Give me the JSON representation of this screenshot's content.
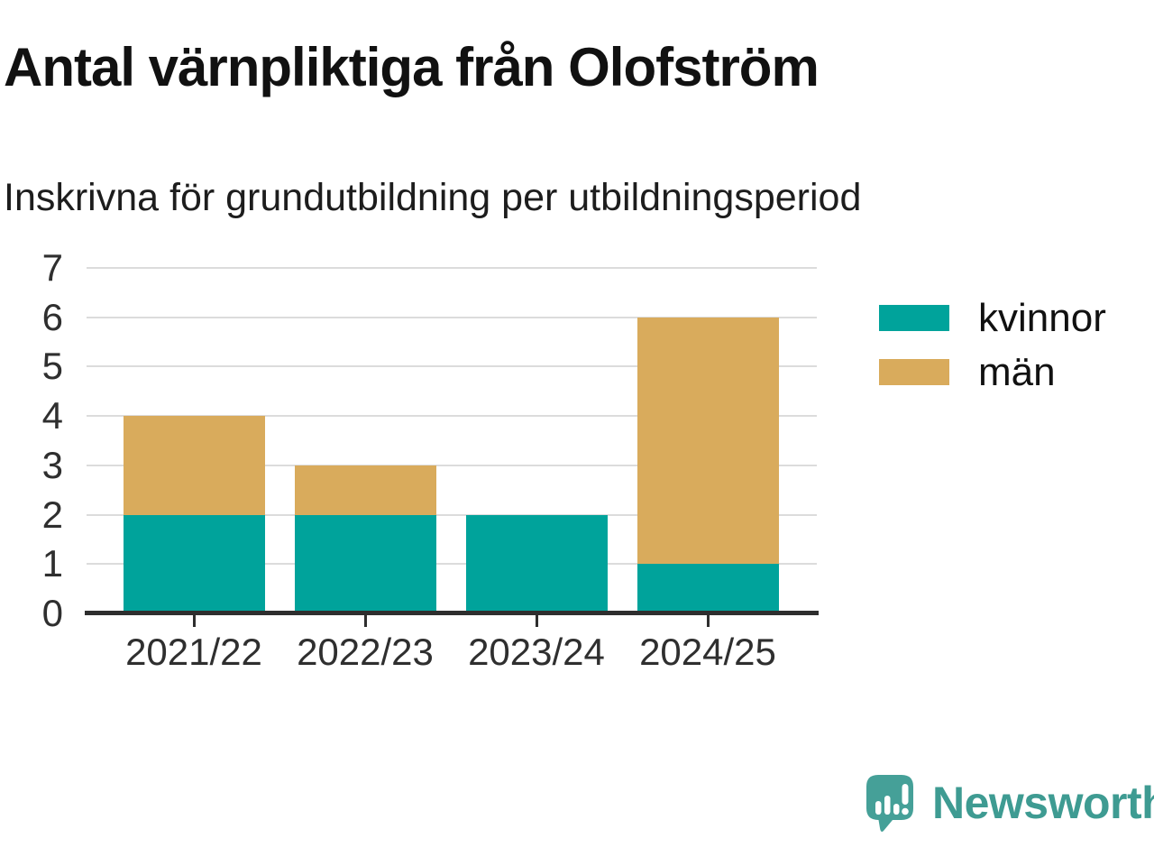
{
  "title": "Antal värnpliktiga från Olofström",
  "subtitle": "Inskrivna för grundutbildning per utbildningsperiod",
  "brand": {
    "name": "Newsworthy"
  },
  "colors": {
    "kvinnor": "#00a39b",
    "man": "#d9ab5c",
    "grid": "#dcdcdc",
    "axis": "#2e2e2e",
    "tick_text": "#2f2f2f",
    "title_text": "#111111",
    "logo": "#45a098"
  },
  "chart_data": {
    "type": "bar",
    "stacked": true,
    "title": "Antal värnpliktiga från Olofström",
    "subtitle": "Inskrivna för grundutbildning per utbildningsperiod",
    "categories": [
      "2021/22",
      "2022/23",
      "2023/24",
      "2024/25"
    ],
    "series": [
      {
        "name": "kvinnor",
        "color": "#00a39b",
        "values": [
          2,
          2,
          2,
          1
        ]
      },
      {
        "name": "män",
        "color": "#d9ab5c",
        "values": [
          2,
          1,
          0,
          5
        ]
      }
    ],
    "ylim": [
      0,
      7
    ],
    "yticks": [
      0,
      1,
      2,
      3,
      4,
      5,
      6,
      7
    ],
    "grid": true,
    "legend_position": "right",
    "xlabel": "",
    "ylabel": ""
  }
}
